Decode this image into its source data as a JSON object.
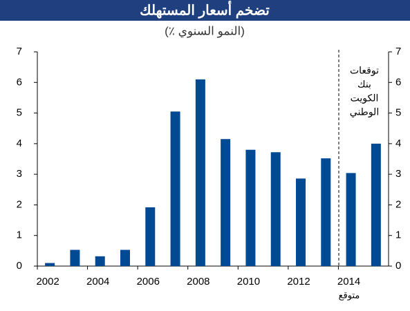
{
  "chart_data": {
    "type": "bar",
    "title": "تضخم أسعار المستهلك",
    "subtitle": "(٪ النمو السنوي)",
    "categories": [
      "2002",
      null,
      "2004",
      null,
      "2006",
      null,
      "2008",
      null,
      "2010",
      null,
      "2012",
      null,
      "2014",
      null
    ],
    "values": [
      0.1,
      0.53,
      0.32,
      0.53,
      1.92,
      5.05,
      6.1,
      4.15,
      3.8,
      3.72,
      2.86,
      3.52,
      3.04,
      4.0
    ],
    "color": "#004a93",
    "ylim": [
      0,
      7
    ],
    "yticks": [
      0,
      1,
      2,
      3,
      4,
      5,
      6,
      7
    ],
    "y2lim": [
      0,
      7
    ],
    "y2ticks": [
      0,
      1,
      2,
      3,
      4,
      5,
      6,
      7
    ],
    "forecast_label": "متوقع",
    "forecast_note": [
      "توقعات",
      "بنك",
      "الكويت",
      "الوطني"
    ]
  }
}
